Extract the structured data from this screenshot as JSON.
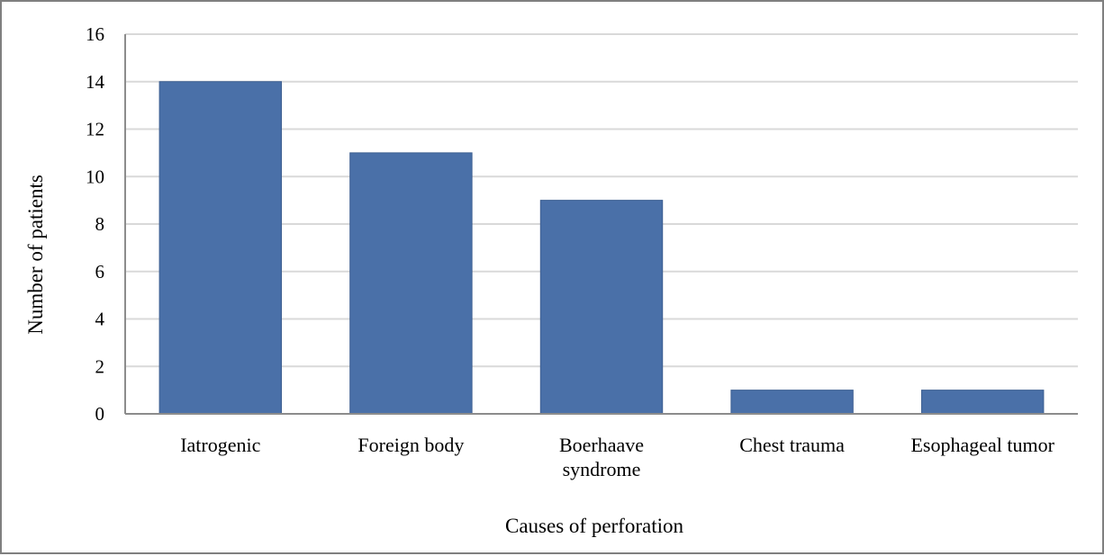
{
  "chart_data": {
    "type": "bar",
    "categories": [
      [
        "Iatrogenic"
      ],
      [
        "Foreign body"
      ],
      [
        "Boerhaave",
        "syndrome"
      ],
      [
        "Chest trauma"
      ],
      [
        "Esophageal tumor"
      ]
    ],
    "values": [
      14,
      11,
      9,
      1,
      1
    ],
    "xlabel": "Causes of perforation",
    "ylabel": "Number of patients",
    "ylim": [
      0,
      16
    ],
    "yticks": [
      0,
      2,
      4,
      6,
      8,
      10,
      12,
      14,
      16
    ],
    "grid": true,
    "legend": "none",
    "bar_color": "#4a70a8",
    "grid_color": "#d9d9d9"
  }
}
